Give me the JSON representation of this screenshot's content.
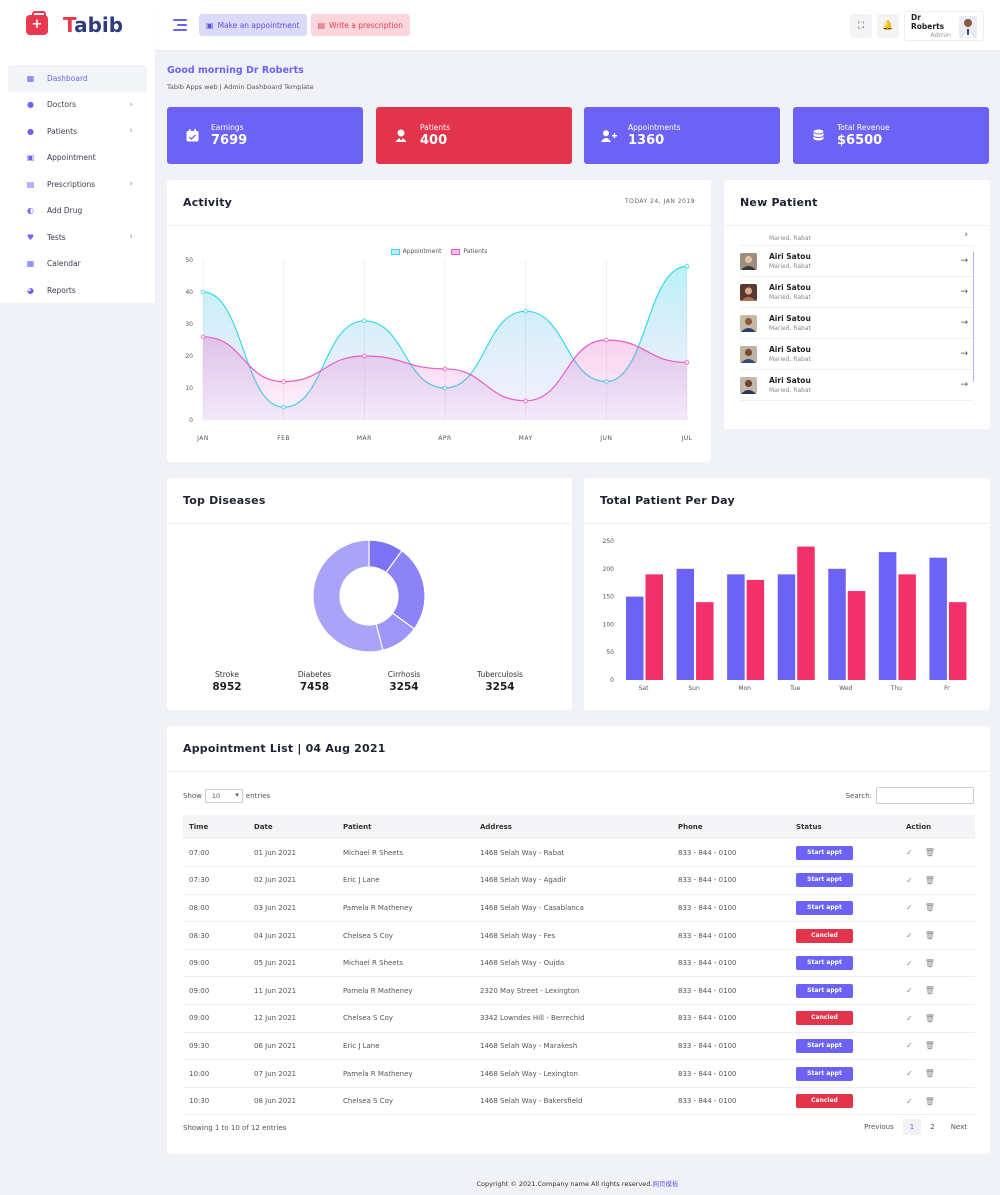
{
  "brand": {
    "name_first": "T",
    "name_rest": "abib"
  },
  "topbar": {
    "make_appointment": "Make an appointment",
    "write_prescription": "Write a prescription",
    "user_name": "Dr Roberts",
    "user_role": "Admin"
  },
  "sidebar": {
    "items": [
      {
        "label": "Dashboard",
        "icon": "grid-icon"
      },
      {
        "label": "Doctors",
        "icon": "user-icon"
      },
      {
        "label": "Patients",
        "icon": "users-icon"
      },
      {
        "label": "Appointment",
        "icon": "calendar-check-icon"
      },
      {
        "label": "Prescriptions",
        "icon": "file-icon"
      },
      {
        "label": "Add Drug",
        "icon": "pills-icon"
      },
      {
        "label": "Tests",
        "icon": "heart-icon"
      },
      {
        "label": "Calendar",
        "icon": "calendar-icon"
      },
      {
        "label": "Reports",
        "icon": "pie-chart-icon"
      }
    ]
  },
  "header": {
    "greeting": "Good morning Dr Roberts",
    "subtitle": "Tabib Apps web | Admin Dashboard Template"
  },
  "stats": [
    {
      "label": "Earnings",
      "value": "7699",
      "color": "#6c63f6"
    },
    {
      "label": "Patients",
      "value": "400",
      "color": "#e2344a"
    },
    {
      "label": "Appointments",
      "value": "1360",
      "color": "#6c63f6"
    },
    {
      "label": "Total Revenue",
      "value": "$6500",
      "color": "#6c63f6"
    }
  ],
  "activity": {
    "title": "Activity",
    "date": "TODAY 24, JAN 2019"
  },
  "new_patient": {
    "title": "New Patient",
    "partial_sub": "Maried, Rabat",
    "rows": [
      {
        "name": "Airi Satou",
        "sub": "Maried, Rabat"
      },
      {
        "name": "Airi Satou",
        "sub": "Maried, Rabat"
      },
      {
        "name": "Airi Satou",
        "sub": "Maried, Rabat"
      },
      {
        "name": "Airi Satou",
        "sub": "Maried, Rabat"
      },
      {
        "name": "Airi Satou",
        "sub": "Maried, Rabat"
      }
    ]
  },
  "diseases": {
    "title": "Top Diseases",
    "items": [
      {
        "name": "Stroke",
        "value": "8952"
      },
      {
        "name": "Diabetes",
        "value": "7458"
      },
      {
        "name": "Cirrhosis",
        "value": "3254"
      },
      {
        "name": "Tuberculosis",
        "value": "3254"
      }
    ]
  },
  "patients_per_day": {
    "title": "Total Patient Per Day"
  },
  "appointments": {
    "title": "Appointment List | 04 Aug 2021",
    "show_label": "Show",
    "show_value": "10",
    "entries_label": "entries",
    "search_label": "Search:",
    "columns": [
      "Time",
      "Date",
      "Patient",
      "Address",
      "Phone",
      "Status",
      "Action"
    ],
    "rows": [
      {
        "time": "07:00",
        "date": "01 Jun 2021",
        "patient": "Michael R Sheets",
        "address": "1468 Selah Way - Rabat",
        "phone": "833 - 844 - 0100",
        "status": "Start appt"
      },
      {
        "time": "07:30",
        "date": "02 Jun 2021",
        "patient": "Eric J Lane",
        "address": "1468 Selah Way - Agadir",
        "phone": "833 - 844 - 0100",
        "status": "Start appt"
      },
      {
        "time": "08:00",
        "date": "03 Jun 2021",
        "patient": "Pamela R Matheney",
        "address": "1468 Selah Way - Casablanca",
        "phone": "833 - 844 - 0100",
        "status": "Start appt"
      },
      {
        "time": "08:30",
        "date": "04 Jun 2021",
        "patient": "Chelsea S Coy",
        "address": "1468 Selah Way - Fes",
        "phone": "833 - 844 - 0100",
        "status": "Cancled"
      },
      {
        "time": "09:00",
        "date": "05 Jun 2021",
        "patient": "Michael R Sheets",
        "address": "1468 Selah Way - Oujda",
        "phone": "833 - 844 - 0100",
        "status": "Start appt"
      },
      {
        "time": "09:00",
        "date": "11 Jun 2021",
        "patient": "Pamela R Matheney",
        "address": "2320 May Street - Lexington",
        "phone": "833 - 844 - 0100",
        "status": "Start appt"
      },
      {
        "time": "09:00",
        "date": "12 Jun 2021",
        "patient": "Chelsea S Coy",
        "address": "3342 Lowndes Hill - Berrechid",
        "phone": "833 - 844 - 0100",
        "status": "Cancled"
      },
      {
        "time": "09:30",
        "date": "06 Jun 2021",
        "patient": "Eric J Lane",
        "address": "1468 Selah Way - Marakesh",
        "phone": "833 - 844 - 0100",
        "status": "Start appt"
      },
      {
        "time": "10:00",
        "date": "07 Jun 2021",
        "patient": "Pamela R Matheney",
        "address": "1468 Selah Way - Lexington",
        "phone": "833 - 844 - 0100",
        "status": "Start appt"
      },
      {
        "time": "10:30",
        "date": "08 Jun 2021",
        "patient": "Chelsea S Coy",
        "address": "1468 Selah Way - Bakersfield",
        "phone": "833 - 844 - 0100",
        "status": "Cancled"
      }
    ],
    "showing": "Showing 1 to 10 of 12 entries",
    "pager": {
      "prev": "Previous",
      "pages": [
        "1",
        "2"
      ],
      "next": "Next"
    }
  },
  "footer": {
    "text": "Copyright © 2021.Company name All rights reserved.",
    "link": "网页模板"
  },
  "colors": {
    "primary": "#6c63f6",
    "danger": "#e2344a",
    "cyan": "#3ad8e6",
    "pink": "#e85cc4",
    "bar_pink": "#f2306a"
  },
  "chart_data": [
    {
      "type": "area",
      "title": "Activity",
      "categories": [
        "JAN",
        "FEB",
        "MAR",
        "APR",
        "MAY",
        "JUN",
        "JUL"
      ],
      "x": [
        0,
        0.5,
        1,
        1.5,
        2,
        2.5,
        3,
        3.5,
        4,
        4.5,
        5,
        5.5,
        6
      ],
      "series": [
        {
          "name": "Appointment",
          "values": [
            40,
            4,
            31,
            10,
            34,
            12,
            48
          ]
        },
        {
          "name": "Patients",
          "values": [
            26,
            12,
            20,
            16,
            6,
            25,
            18
          ]
        }
      ],
      "ylim": [
        0,
        50
      ],
      "yticks": [
        0,
        10,
        20,
        30,
        40,
        50
      ],
      "legend": "top-center",
      "grid": true
    },
    {
      "type": "pie",
      "title": "Top Diseases",
      "series": [
        {
          "values": [
            10,
            25,
            11,
            54
          ]
        }
      ],
      "donut": true
    },
    {
      "type": "bar",
      "title": "Total Patient Per Day",
      "categories": [
        "Sat",
        "Sun",
        "Mon",
        "Tue",
        "Wed",
        "Thu",
        "Fr"
      ],
      "series": [
        {
          "values": [
            150,
            200,
            190,
            190,
            200,
            230,
            220
          ]
        },
        {
          "values": [
            190,
            140,
            180,
            240,
            160,
            190,
            140
          ]
        }
      ],
      "ylim": [
        0,
        250
      ],
      "yticks": [
        0,
        50,
        100,
        150,
        200,
        250
      ]
    }
  ]
}
